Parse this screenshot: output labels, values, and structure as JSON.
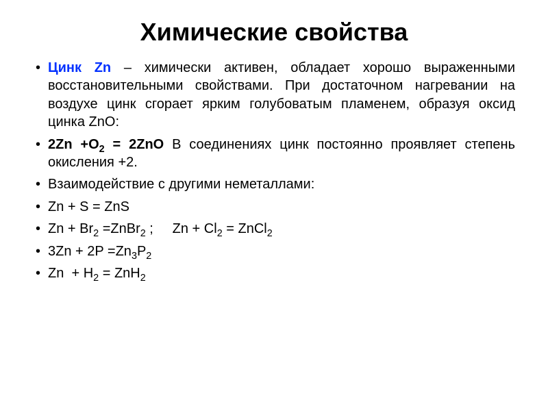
{
  "title": {
    "text": "Химические свойства",
    "fontsize": 36,
    "color": "#000000"
  },
  "body": {
    "fontsize": 20,
    "lineheight": 1.32,
    "color": "#000000",
    "bullet_color": "#000000"
  },
  "element": {
    "name": "Цинк",
    "symbol": "Zn",
    "color": "#0432ff",
    "weight": "bold"
  },
  "bullets": {
    "b1_before": "",
    "b1_after": " – химически активен, обладает хорошо выраженными восстановительными свойствами. При достаточном нагревании на воздухе цинк сгорает ярким голубоватым пламенем, образуя оксид цинка ZnO:",
    "b2_eq_lhs1": "2Zn +O",
    "b2_eq_sub1": "2",
    "b2_eq_mid": " = 2ZnO",
    "b2_rest": " В соединениях цинк постоянно проявляет степень окисления +2.",
    "b3": "Взаимодействие с другими неметаллами:",
    "b4": "Zn + S = ZnS",
    "b5_a": "Zn + Br",
    "b5_a_sub": "2",
    "b5_b": " =ZnBr",
    "b5_b_sub": "2",
    "b5_sep": " ;     ",
    "b5_c": "Zn + Cl",
    "b5_c_sub": "2",
    "b5_d": " = ZnCl",
    "b5_d_sub": "2",
    "b6_a": "3Zn + 2P =Zn",
    "b6_sub1": "3",
    "b6_b": "P",
    "b6_sub2": "2",
    "b7_a": "Zn  + H",
    "b7_sub1": "2",
    "b7_b": " = ZnH",
    "b7_sub2": "2"
  },
  "background_color": "#ffffff"
}
